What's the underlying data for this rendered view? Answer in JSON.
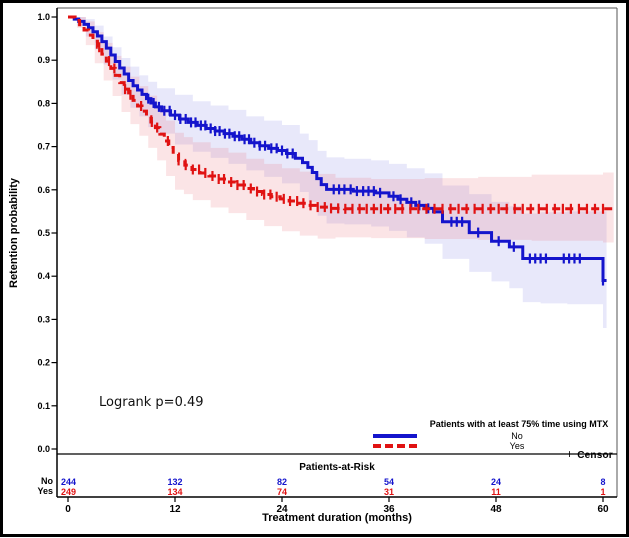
{
  "window": {
    "background": "#ffffff",
    "border_color": "#000000"
  },
  "chart_data": {
    "type": "line",
    "subtype": "kaplan-meier-step-curves-with-confidence-bands",
    "title": "",
    "xlabel": "Treatment duration (months)",
    "ylabel": "Retention probability",
    "xlim": [
      0,
      61.5
    ],
    "ylim": [
      0.0,
      1.0
    ],
    "xticks": [
      0,
      12,
      24,
      36,
      48,
      60
    ],
    "ytick_labels": [
      "0.0",
      "0.1",
      "0.2",
      "0.3",
      "0.4",
      "0.5",
      "0.6",
      "0.7",
      "0.8",
      "0.9",
      "1.0"
    ],
    "grid": false,
    "annotation": "Logrank p=0.49",
    "legend": {
      "title": "Patients with at least 75% time using MTX",
      "position": "bottom-right-inside",
      "censor_marker": "+",
      "censor_label": "Censor",
      "entries": [
        {
          "label": "No",
          "color": "#1414cc",
          "style": "solid"
        },
        {
          "label": "Yes",
          "color": "#e01212",
          "style": "dashed"
        }
      ]
    },
    "series": [
      {
        "name": "No",
        "color": "#1414cc",
        "line_style": "solid",
        "band_color": "rgba(110,110,225,0.16)",
        "extend_to": 60.4,
        "steps": [
          [
            0,
            1.0
          ],
          [
            0.7,
            0.995
          ],
          [
            1.2,
            0.99
          ],
          [
            1.8,
            0.983
          ],
          [
            2.3,
            0.975
          ],
          [
            2.8,
            0.966
          ],
          [
            3.3,
            0.956
          ],
          [
            3.8,
            0.943
          ],
          [
            4.3,
            0.928
          ],
          [
            4.8,
            0.912
          ],
          [
            5.3,
            0.897
          ],
          [
            5.8,
            0.882
          ],
          [
            6.3,
            0.868
          ],
          [
            6.8,
            0.853
          ],
          [
            7.3,
            0.841
          ],
          [
            7.8,
            0.831
          ],
          [
            8.3,
            0.821
          ],
          [
            8.8,
            0.811
          ],
          [
            9.3,
            0.801
          ],
          [
            9.8,
            0.792
          ],
          [
            10.5,
            0.783
          ],
          [
            11.5,
            0.773
          ],
          [
            12.5,
            0.764
          ],
          [
            13.5,
            0.756
          ],
          [
            14.5,
            0.749
          ],
          [
            15.5,
            0.742
          ],
          [
            16.5,
            0.736
          ],
          [
            17.5,
            0.73
          ],
          [
            18.5,
            0.724
          ],
          [
            19.5,
            0.717
          ],
          [
            20.5,
            0.709
          ],
          [
            21.5,
            0.702
          ],
          [
            22.5,
            0.696
          ],
          [
            23.5,
            0.691
          ],
          [
            24.5,
            0.684
          ],
          [
            25.5,
            0.673
          ],
          [
            26.3,
            0.663
          ],
          [
            26.9,
            0.652
          ],
          [
            27.4,
            0.64
          ],
          [
            27.9,
            0.626
          ],
          [
            28.4,
            0.612
          ],
          [
            29,
            0.601
          ],
          [
            32,
            0.597
          ],
          [
            34.5,
            0.593
          ],
          [
            36,
            0.585
          ],
          [
            37,
            0.578
          ],
          [
            38,
            0.571
          ],
          [
            39,
            0.564
          ],
          [
            40,
            0.557
          ],
          [
            41,
            0.549
          ],
          [
            42,
            0.526
          ],
          [
            45,
            0.501
          ],
          [
            47.5,
            0.481
          ],
          [
            49.5,
            0.468
          ],
          [
            51,
            0.441
          ],
          [
            60,
            0.39
          ]
        ],
        "censor_times": [
          9,
          9.6,
          10.2,
          10.8,
          11.4,
          12,
          12.6,
          13.2,
          13.8,
          14.3,
          14.9,
          15.4,
          16,
          16.5,
          17,
          17.6,
          18.1,
          18.7,
          19.2,
          19.8,
          20.3,
          20.9,
          21.5,
          22.1,
          22.8,
          23.4,
          24,
          24.6,
          25.2,
          29.8,
          30.4,
          31,
          31.7,
          32.4,
          33.1,
          33.7,
          34.3,
          35,
          36.5,
          37.3,
          38.5,
          39.4,
          40.4,
          43,
          43.6,
          44.2,
          46,
          48.3,
          50,
          51.8,
          52.4,
          53,
          53.6,
          55.6,
          56.2,
          56.8,
          57.4,
          60
        ],
        "ci": {
          "times": [
            0,
            1,
            2,
            3,
            4,
            5,
            6,
            7,
            8,
            9,
            10,
            12,
            14,
            16,
            18,
            20,
            22,
            24,
            26,
            27,
            28,
            29,
            31,
            34,
            36,
            38,
            40,
            42,
            45,
            47.5,
            49.5,
            51,
            53,
            56,
            60
          ],
          "upper": [
            1.0,
            1.0,
            0.995,
            0.98,
            0.955,
            0.93,
            0.905,
            0.885,
            0.865,
            0.85,
            0.835,
            0.82,
            0.805,
            0.795,
            0.785,
            0.77,
            0.76,
            0.75,
            0.73,
            0.715,
            0.69,
            0.675,
            0.672,
            0.668,
            0.66,
            0.65,
            0.638,
            0.61,
            0.59,
            0.572,
            0.562,
            0.545,
            0.548,
            0.55,
            0.55
          ],
          "lower": [
            1.0,
            0.98,
            0.955,
            0.925,
            0.89,
            0.855,
            0.82,
            0.79,
            0.77,
            0.745,
            0.73,
            0.705,
            0.688,
            0.674,
            0.66,
            0.645,
            0.63,
            0.615,
            0.595,
            0.572,
            0.54,
            0.522,
            0.52,
            0.515,
            0.505,
            0.49,
            0.475,
            0.44,
            0.41,
            0.388,
            0.372,
            0.34,
            0.337,
            0.335,
            0.28
          ]
        }
      },
      {
        "name": "Yes",
        "color": "#e01212",
        "line_style": "dashed",
        "band_color": "rgba(235,120,130,0.20)",
        "extend_to": 61.2,
        "steps": [
          [
            0,
            1.0
          ],
          [
            0.8,
            0.992
          ],
          [
            1.3,
            0.982
          ],
          [
            1.8,
            0.97
          ],
          [
            2.3,
            0.958
          ],
          [
            2.8,
            0.944
          ],
          [
            3.3,
            0.93
          ],
          [
            3.8,
            0.914
          ],
          [
            4.3,
            0.898
          ],
          [
            4.8,
            0.881
          ],
          [
            5.3,
            0.865
          ],
          [
            5.8,
            0.848
          ],
          [
            6.3,
            0.833
          ],
          [
            6.8,
            0.82
          ],
          [
            7.3,
            0.807
          ],
          [
            7.8,
            0.794
          ],
          [
            8.3,
            0.782
          ],
          [
            8.8,
            0.769
          ],
          [
            9.3,
            0.757
          ],
          [
            9.8,
            0.744
          ],
          [
            10.3,
            0.729
          ],
          [
            10.8,
            0.713
          ],
          [
            11.3,
            0.698
          ],
          [
            11.8,
            0.683
          ],
          [
            12.4,
            0.668
          ],
          [
            13.1,
            0.657
          ],
          [
            13.9,
            0.647
          ],
          [
            14.8,
            0.639
          ],
          [
            15.8,
            0.632
          ],
          [
            16.8,
            0.625
          ],
          [
            17.8,
            0.618
          ],
          [
            18.8,
            0.611
          ],
          [
            19.8,
            0.603
          ],
          [
            20.8,
            0.596
          ],
          [
            21.8,
            0.589
          ],
          [
            22.8,
            0.584
          ],
          [
            23.8,
            0.579
          ],
          [
            24.8,
            0.574
          ],
          [
            25.8,
            0.569
          ],
          [
            26.8,
            0.564
          ],
          [
            28,
            0.56
          ],
          [
            29.5,
            0.557
          ],
          [
            31,
            0.556
          ]
        ],
        "censor_times": [
          3.5,
          4.6,
          5.2,
          6.4,
          7,
          8.2,
          9.4,
          10,
          11.2,
          12.4,
          13.2,
          14,
          14.7,
          15.4,
          16.2,
          16.9,
          17.5,
          18.3,
          19,
          19.7,
          20.5,
          21.2,
          22,
          22.7,
          23.4,
          24.2,
          24.9,
          25.7,
          26.4,
          27.2,
          28,
          28.8,
          29.5,
          30.3,
          31.1,
          31.9,
          32.7,
          33.5,
          34.3,
          35.1,
          35.9,
          36.7,
          37.5,
          38.4,
          39.3,
          40.2,
          41.1,
          42,
          42.9,
          43.8,
          44.7,
          45.6,
          46.5,
          47.4,
          48.3,
          49.2,
          50.1,
          51,
          51.9,
          52.8,
          53.7,
          54.6,
          55.5,
          56.4,
          57.3,
          58.2,
          59.1,
          60
        ],
        "ci": {
          "times": [
            0,
            1,
            2,
            3,
            4,
            5,
            6,
            7,
            8,
            9,
            10,
            11,
            12,
            13,
            14,
            16,
            18,
            20,
            22,
            24,
            26,
            28,
            30,
            34,
            40,
            46,
            52,
            60
          ],
          "upper": [
            1.0,
            1.0,
            0.99,
            0.965,
            0.94,
            0.91,
            0.885,
            0.862,
            0.84,
            0.818,
            0.793,
            0.76,
            0.732,
            0.722,
            0.71,
            0.697,
            0.686,
            0.672,
            0.66,
            0.65,
            0.642,
            0.637,
            0.628,
            0.625,
            0.627,
            0.63,
            0.635,
            0.64
          ],
          "lower": [
            1.0,
            0.975,
            0.935,
            0.893,
            0.853,
            0.817,
            0.78,
            0.752,
            0.725,
            0.697,
            0.668,
            0.632,
            0.6,
            0.59,
            0.576,
            0.559,
            0.546,
            0.53,
            0.516,
            0.504,
            0.494,
            0.487,
            0.49,
            0.488,
            0.486,
            0.484,
            0.482,
            0.478
          ]
        }
      }
    ],
    "at_risk": {
      "title": "Patients-at-Risk",
      "times": [
        0,
        12,
        24,
        36,
        48,
        60
      ],
      "rows": [
        {
          "label": "No",
          "color": "#1414cc",
          "values": [
            "244",
            "132",
            "82",
            "54",
            "24",
            "8"
          ]
        },
        {
          "label": "Yes",
          "color": "#e01212",
          "values": [
            "249",
            "134",
            "74",
            "31",
            "11",
            "1"
          ]
        }
      ]
    }
  }
}
